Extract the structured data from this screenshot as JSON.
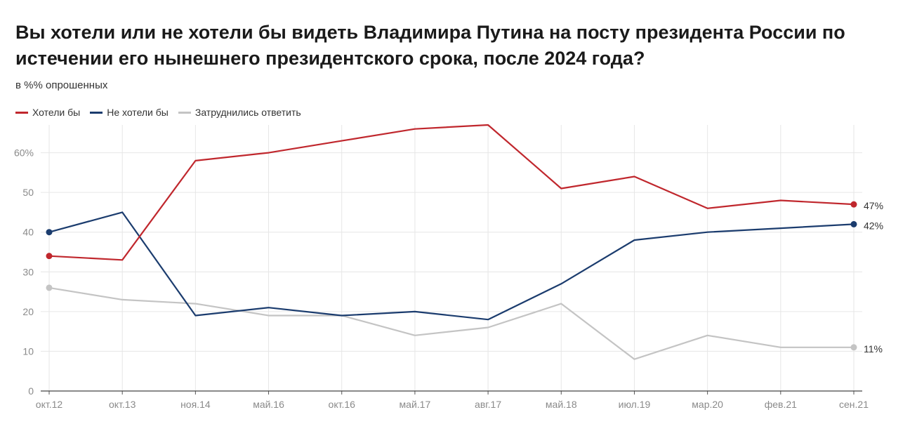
{
  "chart_data": {
    "type": "line",
    "title": "Вы хотели или не хотели бы видеть Владимира Путина на посту президента России по истечении его нынешнего президентского срока, после 2024 года?",
    "subtitle": "в %% опрошенных",
    "categories": [
      "окт.12",
      "окт.13",
      "ноя.14",
      "май.16",
      "окт.16",
      "май.17",
      "авг.17",
      "май.18",
      "июл.19",
      "мар.20",
      "фев.21",
      "сен.21"
    ],
    "y_ticks": [
      0,
      10,
      20,
      30,
      40,
      50,
      60
    ],
    "y_tick_labels": [
      "0",
      "10",
      "20",
      "30",
      "40",
      "50",
      "60%"
    ],
    "ylim": [
      0,
      67
    ],
    "grid": true,
    "legend_position": "top-left",
    "series": [
      {
        "name": "Хотели бы",
        "color": "#c0272d",
        "values": [
          34,
          33,
          58,
          60,
          63,
          66,
          67,
          51,
          54,
          46,
          48,
          47
        ],
        "end_label": "47%"
      },
      {
        "name": "Не хотели бы",
        "color": "#1b3c6e",
        "values": [
          40,
          45,
          19,
          21,
          19,
          20,
          18,
          27,
          38,
          40,
          41,
          42
        ],
        "end_label": "42%"
      },
      {
        "name": "Затруднились ответить",
        "color": "#c4c4c4",
        "values": [
          26,
          23,
          22,
          19,
          19,
          14,
          16,
          22,
          8,
          14,
          11,
          11
        ],
        "end_label": "11%"
      }
    ]
  }
}
